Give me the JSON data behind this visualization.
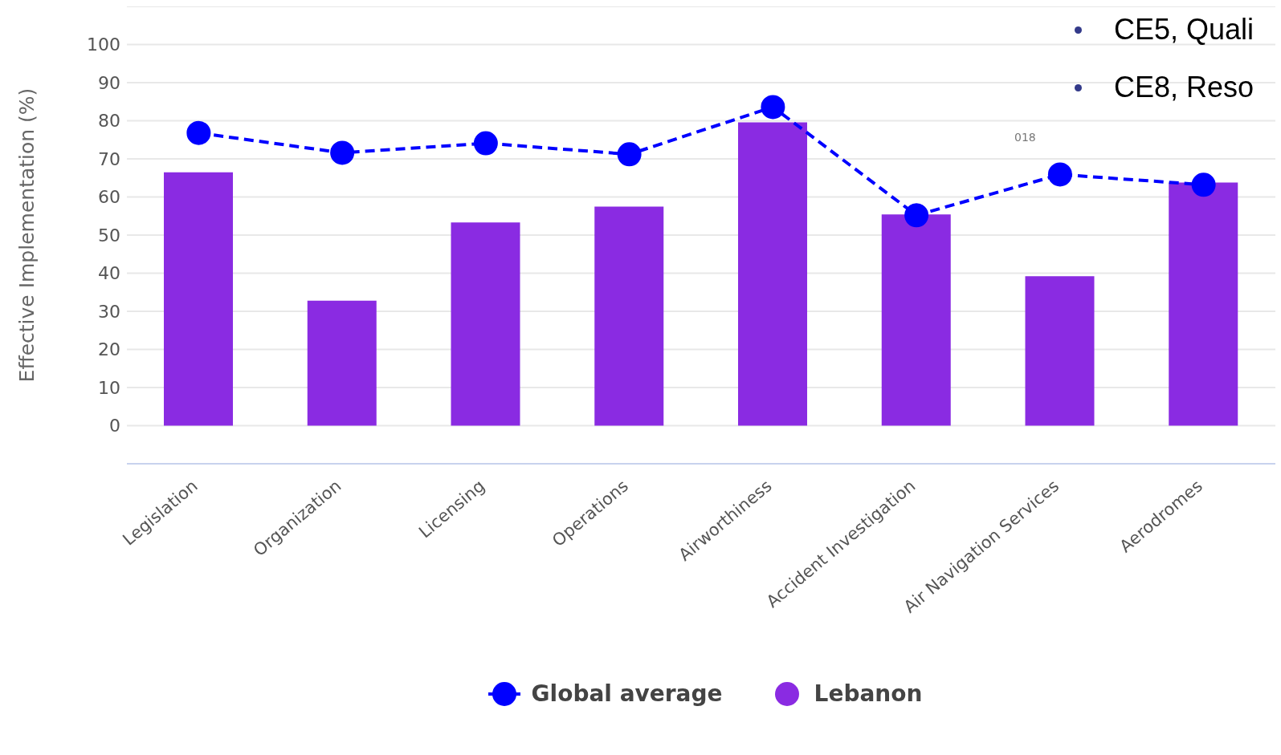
{
  "chart_data": {
    "type": "bar",
    "ylabel": "Effective Implementation (%)",
    "categories": [
      "Legislation",
      "Organization",
      "Licensing",
      "Operations",
      "Airworthiness",
      "Accident Investigation",
      "Air Navigation Services",
      "Aerodromes"
    ],
    "series": [
      {
        "name": "Global average",
        "type": "line",
        "color": "#0000ff",
        "values": [
          76.8,
          71.6,
          74.1,
          71.2,
          83.6,
          55.2,
          65.9,
          63.2
        ]
      },
      {
        "name": "Lebanon",
        "color": "#8a2be2",
        "values": [
          66.5,
          32.8,
          53.3,
          57.5,
          79.6,
          55.4,
          39.2,
          63.8
        ]
      }
    ],
    "ylim": [
      -10,
      110
    ],
    "yticks": [
      0,
      10,
      20,
      30,
      40,
      50,
      60,
      70,
      80,
      90,
      100,
      {
        "value": 110,
        "label": null
      }
    ],
    "grid": "y",
    "legend": "bottom",
    "marker": "circle",
    "line_style": "dashed",
    "annotations": [
      "CE5, Quali",
      "CE8, Reso",
      "018"
    ]
  }
}
